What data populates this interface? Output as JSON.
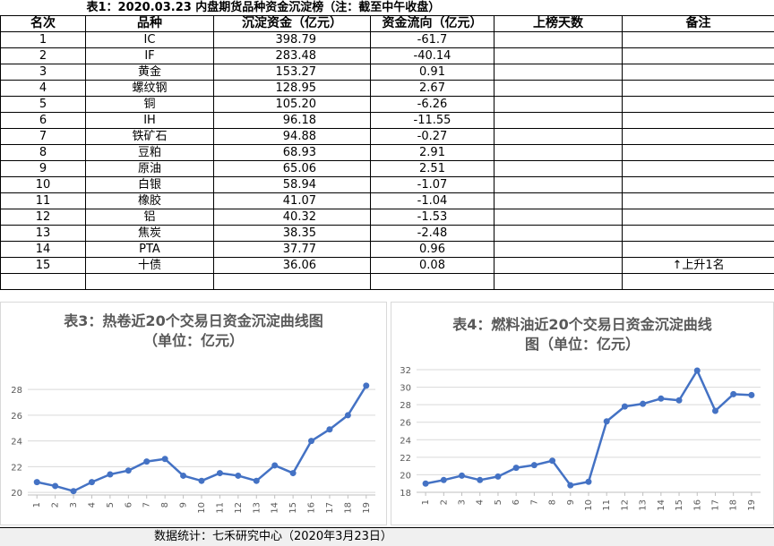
{
  "table": {
    "title": "表1：2020.03.23 内盘期货品种资金沉淀榜（注：截至中午收盘）",
    "headers": [
      "名次",
      "品种",
      "沉淀资金（亿元）",
      "资金流向（亿元）",
      "上榜天数",
      "备注"
    ],
    "rows": [
      {
        "rank": "1",
        "name": "IC",
        "amount": "398.79",
        "flow": "-61.7",
        "days": "",
        "note": ""
      },
      {
        "rank": "2",
        "name": "IF",
        "amount": "283.48",
        "flow": "-40.14",
        "days": "",
        "note": ""
      },
      {
        "rank": "3",
        "name": "黄金",
        "amount": "153.27",
        "flow": "0.91",
        "days": "",
        "note": ""
      },
      {
        "rank": "4",
        "name": "螺纹钢",
        "amount": "128.95",
        "flow": "2.67",
        "days": "",
        "note": ""
      },
      {
        "rank": "5",
        "name": "铜",
        "amount": "105.20",
        "flow": "-6.26",
        "days": "",
        "note": ""
      },
      {
        "rank": "6",
        "name": "IH",
        "amount": "96.18",
        "flow": "-11.55",
        "days": "",
        "note": ""
      },
      {
        "rank": "7",
        "name": "铁矿石",
        "amount": "94.88",
        "flow": "-0.27",
        "days": "",
        "note": ""
      },
      {
        "rank": "8",
        "name": "豆粕",
        "amount": "68.93",
        "flow": "2.91",
        "days": "",
        "note": ""
      },
      {
        "rank": "9",
        "name": "原油",
        "amount": "65.06",
        "flow": "2.51",
        "days": "",
        "note": ""
      },
      {
        "rank": "10",
        "name": "白银",
        "amount": "58.94",
        "flow": "-1.07",
        "days": "",
        "note": ""
      },
      {
        "rank": "11",
        "name": "橡胶",
        "amount": "41.07",
        "flow": "-1.04",
        "days": "",
        "note": ""
      },
      {
        "rank": "12",
        "name": "铝",
        "amount": "40.32",
        "flow": "-1.53",
        "days": "",
        "note": ""
      },
      {
        "rank": "13",
        "name": "焦炭",
        "amount": "38.35",
        "flow": "-2.48",
        "days": "",
        "note": ""
      },
      {
        "rank": "14",
        "name": "PTA",
        "amount": "37.77",
        "flow": "0.96",
        "days": "",
        "note": ""
      },
      {
        "rank": "15",
        "name": "十债",
        "amount": "36.06",
        "flow": "0.08",
        "days": "",
        "note": "↑上升1名"
      }
    ]
  },
  "chart_data": [
    {
      "type": "line",
      "title": "表3：热卷近20个交易日资金沉淀曲线图",
      "subtitle": "（单位：亿元）",
      "x": [
        1,
        2,
        3,
        4,
        5,
        6,
        7,
        8,
        9,
        10,
        11,
        12,
        13,
        14,
        15,
        16,
        17,
        18,
        19
      ],
      "values": [
        20.8,
        20.5,
        20.1,
        20.8,
        21.4,
        21.7,
        22.4,
        22.6,
        21.3,
        20.9,
        21.5,
        21.3,
        20.9,
        22.1,
        21.5,
        24.0,
        24.9,
        26.0,
        28.3
      ],
      "yticks": [
        20,
        22,
        24,
        26,
        28
      ],
      "ylim": [
        19.8,
        28.5
      ],
      "color": "#4472c4"
    },
    {
      "type": "line",
      "title": "表4：燃料油近20个交易日资金沉淀曲线",
      "subtitle": "图（单位：亿元）",
      "x": [
        1,
        2,
        3,
        4,
        5,
        6,
        7,
        8,
        9,
        10,
        11,
        12,
        13,
        14,
        15,
        16,
        17,
        18,
        19
      ],
      "values": [
        19.0,
        19.4,
        19.9,
        19.4,
        19.8,
        20.8,
        21.1,
        21.6,
        18.8,
        19.2,
        26.1,
        27.8,
        28.1,
        28.7,
        28.5,
        31.9,
        27.3,
        29.2,
        29.1
      ],
      "yticks": [
        18,
        20,
        22,
        24,
        26,
        28,
        30,
        32
      ],
      "ylim": [
        18,
        32
      ],
      "color": "#4472c4"
    }
  ],
  "footer": {
    "text": "数据统计：七禾研究中心（2020年3月23日）"
  }
}
